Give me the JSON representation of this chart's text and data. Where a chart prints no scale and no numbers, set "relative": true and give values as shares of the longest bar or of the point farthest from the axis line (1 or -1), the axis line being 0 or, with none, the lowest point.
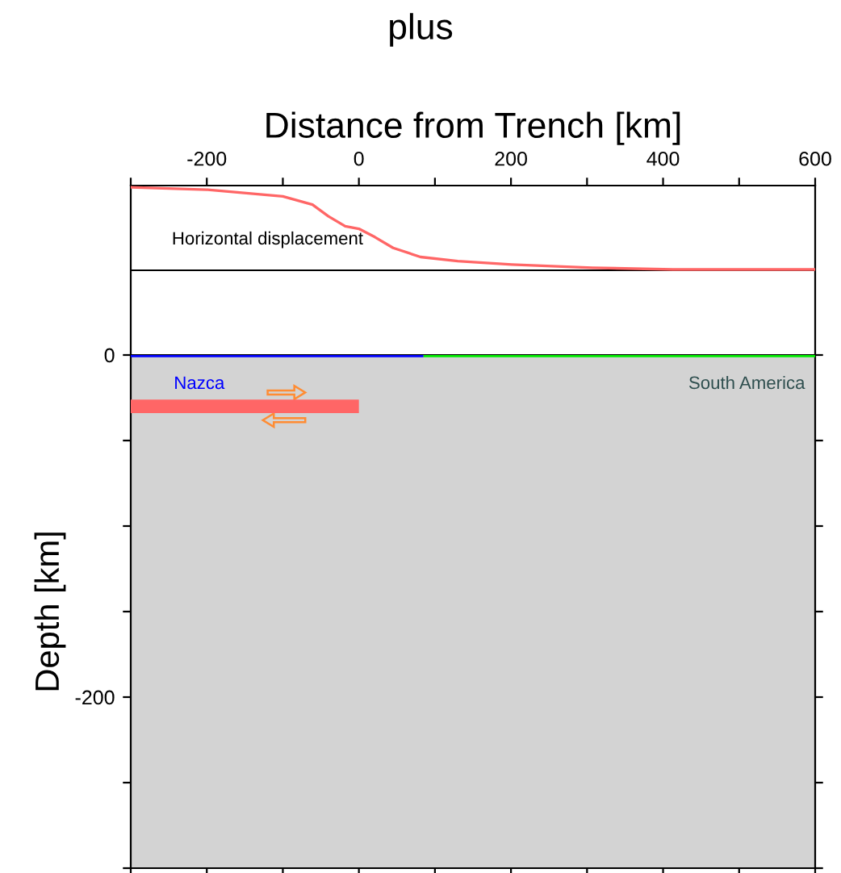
{
  "chart_data": [
    {
      "type": "line",
      "title": "plus",
      "xlabel": "Distance from Trench [km]",
      "relative": true,
      "tick_labels": "x",
      "grid": false,
      "legend": false,
      "xlim": [
        -300,
        600
      ],
      "xticks": [
        {
          "value": -300,
          "label": null
        },
        -200,
        {
          "value": -100,
          "label": null
        },
        0,
        {
          "value": 100,
          "label": null
        },
        200,
        {
          "value": 300,
          "label": null
        },
        400,
        {
          "value": 500,
          "label": null
        },
        600
      ],
      "annotations": [
        "Horizontal displacement"
      ],
      "ref_lines": [
        {
          "axis": "y",
          "value": 0,
          "color": "#000000"
        }
      ],
      "series": [
        {
          "color": "#ff6666",
          "x": [
            -300,
            -199,
            -100,
            -61,
            -40,
            -18,
            0,
            21,
            45,
            81,
            130,
            201,
            307,
            413,
            600
          ],
          "values": [
            1.0,
            0.97,
            0.89,
            0.79,
            0.65,
            0.53,
            0.5,
            0.4,
            0.27,
            0.16,
            0.11,
            0.07,
            0.03,
            0.01,
            0.01
          ]
        }
      ]
    },
    {
      "type": "line",
      "ylabel": "Depth [km]",
      "tick_labels": "y",
      "grid": false,
      "legend": false,
      "xlim": [
        -300,
        600
      ],
      "ylim": [
        -300,
        0
      ],
      "xticks": [
        {
          "value": -300,
          "label": null
        },
        {
          "value": -200,
          "label": null
        },
        {
          "value": -100,
          "label": null
        },
        {
          "value": 0,
          "label": null
        },
        {
          "value": 100,
          "label": null
        },
        {
          "value": 200,
          "label": null
        },
        {
          "value": 300,
          "label": null
        },
        {
          "value": 400,
          "label": null
        },
        {
          "value": 500,
          "label": null
        },
        {
          "value": 600,
          "label": null
        }
      ],
      "yticks": [
        0,
        {
          "value": -50,
          "label": null
        },
        {
          "value": -100,
          "label": null
        },
        {
          "value": -150,
          "label": null
        },
        -200,
        {
          "value": -250,
          "label": null
        },
        {
          "value": -300,
          "label": null
        }
      ],
      "annotations": [
        "Nazca",
        "South America"
      ],
      "series": [
        {
          "color": "#0000ff",
          "x": [
            -300,
            85
          ],
          "values": [
            0,
            0
          ]
        },
        {
          "color": "#00ee00",
          "x": [
            85,
            600
          ],
          "values": [
            0,
            0
          ]
        },
        {
          "color": "#ff6666",
          "x": [
            -300,
            0
          ],
          "values": [
            -30,
            -30
          ]
        }
      ]
    }
  ]
}
